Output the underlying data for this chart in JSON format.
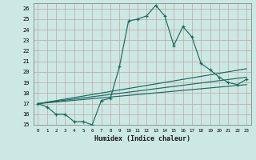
{
  "xlabel": "Humidex (Indice chaleur)",
  "ylabel": "",
  "bg_color": "#cce8e4",
  "line_color": "#1a6b5e",
  "grid_color": "#c4a4a4",
  "xlim": [
    -0.5,
    23.5
  ],
  "ylim": [
    15,
    26.5
  ],
  "yticks": [
    15,
    16,
    17,
    18,
    19,
    20,
    21,
    22,
    23,
    24,
    25,
    26
  ],
  "xticks": [
    0,
    1,
    2,
    3,
    4,
    5,
    6,
    7,
    8,
    9,
    10,
    11,
    12,
    13,
    14,
    15,
    16,
    17,
    18,
    19,
    20,
    21,
    22,
    23
  ],
  "line1_x": [
    0,
    1,
    2,
    3,
    4,
    5,
    6,
    7,
    8,
    9,
    10,
    11,
    12,
    13,
    14,
    15,
    16,
    17,
    18,
    19,
    20,
    21,
    22,
    23
  ],
  "line1_y": [
    17.0,
    16.7,
    16.0,
    16.0,
    15.3,
    15.3,
    15.0,
    17.3,
    17.5,
    20.5,
    24.8,
    25.0,
    25.3,
    26.3,
    25.3,
    22.5,
    24.3,
    23.3,
    20.8,
    20.2,
    19.5,
    19.0,
    18.8,
    19.3
  ],
  "line2_x": [
    0,
    23
  ],
  "line2_y": [
    17.0,
    20.3
  ],
  "line3_x": [
    0,
    23
  ],
  "line3_y": [
    17.0,
    19.5
  ],
  "line4_x": [
    0,
    23
  ],
  "line4_y": [
    17.0,
    18.8
  ]
}
